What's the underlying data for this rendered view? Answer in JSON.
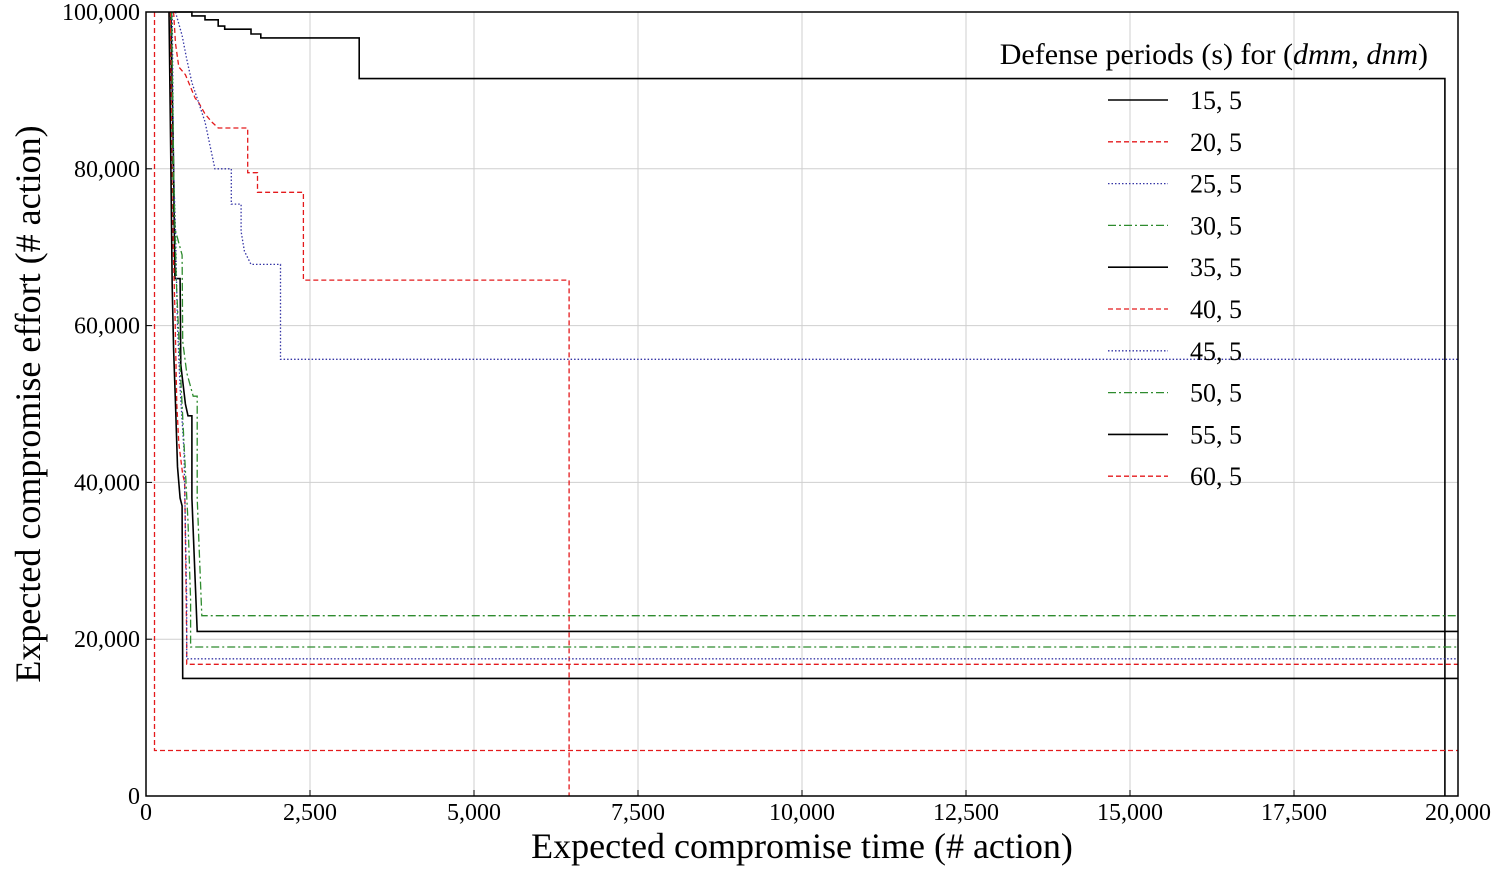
{
  "chart_data": {
    "type": "line",
    "title": "",
    "xlabel": "Expected compromise time (# action)",
    "ylabel": "Expected compromise effort (# action)",
    "xlim": [
      0,
      20000
    ],
    "ylim": [
      0,
      100000
    ],
    "xticks": [
      0,
      2500,
      5000,
      7500,
      10000,
      12500,
      15000,
      17500,
      20000
    ],
    "yticks": [
      0,
      20000,
      40000,
      60000,
      80000,
      100000
    ],
    "xtick_labels": [
      "0",
      "2,500",
      "5,000",
      "7,500",
      "10,000",
      "12,500",
      "15,000",
      "17,500",
      "20,000"
    ],
    "ytick_labels": [
      "0",
      "20,000",
      "40,000",
      "60,000",
      "80,000",
      "100,000"
    ],
    "grid": true,
    "legend_title": "Defense periods (s) for (dmm, dnm)",
    "legend_title_parts": {
      "prefix": "Defense periods (s) for ",
      "open": "(",
      "a": "dmm",
      "sep": ", ",
      "b": "dnm",
      "close": ")"
    },
    "legend_position": "top-right",
    "series": [
      {
        "name": "15, 5",
        "color": "#000000",
        "dash": "solid",
        "points": [
          [
            420,
            100000
          ],
          [
            700,
            100000
          ],
          [
            700,
            99500
          ],
          [
            900,
            99500
          ],
          [
            900,
            99000
          ],
          [
            1100,
            99000
          ],
          [
            1100,
            98200
          ],
          [
            1200,
            98200
          ],
          [
            1200,
            97800
          ],
          [
            1600,
            97800
          ],
          [
            1600,
            97200
          ],
          [
            1750,
            97200
          ],
          [
            1750,
            96700
          ],
          [
            3250,
            96700
          ],
          [
            3250,
            91500
          ],
          [
            19800,
            91500
          ],
          [
            19800,
            0
          ]
        ]
      },
      {
        "name": "20, 5",
        "color": "#e41a1c",
        "dash": "dashed",
        "points": [
          [
            420,
            100000
          ],
          [
            450,
            96000
          ],
          [
            500,
            93000
          ],
          [
            600,
            92000
          ],
          [
            700,
            90000
          ],
          [
            750,
            89000
          ],
          [
            800,
            88500
          ],
          [
            900,
            87000
          ],
          [
            1000,
            86000
          ],
          [
            1100,
            85200
          ],
          [
            1550,
            85200
          ],
          [
            1550,
            79500
          ],
          [
            1700,
            79500
          ],
          [
            1700,
            77000
          ],
          [
            2400,
            77000
          ],
          [
            2400,
            65800
          ],
          [
            6450,
            65800
          ],
          [
            6450,
            0
          ]
        ]
      },
      {
        "name": "25, 5",
        "color": "#3535a5",
        "dash": "dotted",
        "points": [
          [
            450,
            100000
          ],
          [
            550,
            97000
          ],
          [
            620,
            94000
          ],
          [
            700,
            91000
          ],
          [
            800,
            88500
          ],
          [
            900,
            86000
          ],
          [
            1000,
            82000
          ],
          [
            1050,
            80000
          ],
          [
            1300,
            80000
          ],
          [
            1300,
            75500
          ],
          [
            1450,
            75500
          ],
          [
            1450,
            72000
          ],
          [
            1500,
            69500
          ],
          [
            1600,
            67800
          ],
          [
            2050,
            67800
          ],
          [
            2050,
            55700
          ],
          [
            20000,
            55700
          ]
        ]
      },
      {
        "name": "30, 5",
        "color": "#2e8b2e",
        "dash": "dashdot",
        "points": [
          [
            390,
            100000
          ],
          [
            400,
            85000
          ],
          [
            420,
            73000
          ],
          [
            550,
            69000
          ],
          [
            560,
            58000
          ],
          [
            620,
            54000
          ],
          [
            720,
            51000
          ],
          [
            780,
            51000
          ],
          [
            780,
            38000
          ],
          [
            850,
            23000
          ],
          [
            20000,
            23000
          ]
        ]
      },
      {
        "name": "35, 5",
        "color": "#000000",
        "dash": "solid",
        "points": [
          [
            380,
            100000
          ],
          [
            420,
            80000
          ],
          [
            440,
            66000
          ],
          [
            520,
            66000
          ],
          [
            530,
            55000
          ],
          [
            600,
            50000
          ],
          [
            640,
            48500
          ],
          [
            700,
            48500
          ],
          [
            700,
            38000
          ],
          [
            780,
            21000
          ],
          [
            20000,
            21000
          ]
        ]
      },
      {
        "name": "40, 5",
        "color": "#e41a1c",
        "dash": "dashed",
        "points": [
          [
            370,
            100000
          ],
          [
            400,
            75000
          ],
          [
            440,
            62000
          ],
          [
            470,
            50000
          ],
          [
            500,
            45000
          ],
          [
            560,
            41000
          ],
          [
            590,
            40000
          ],
          [
            620,
            20000
          ],
          [
            620,
            16800
          ],
          [
            20000,
            16800
          ]
        ]
      },
      {
        "name": "45, 5",
        "color": "#3535a5",
        "dash": "dotted",
        "points": [
          [
            400,
            100000
          ],
          [
            420,
            80000
          ],
          [
            450,
            72000
          ],
          [
            480,
            60000
          ],
          [
            520,
            52000
          ],
          [
            580,
            44000
          ],
          [
            620,
            25000
          ],
          [
            620,
            17500
          ],
          [
            20000,
            17500
          ]
        ]
      },
      {
        "name": "50, 5",
        "color": "#2e8b2e",
        "dash": "dashdot",
        "points": [
          [
            390,
            100000
          ],
          [
            420,
            80000
          ],
          [
            460,
            66000
          ],
          [
            520,
            55000
          ],
          [
            580,
            45000
          ],
          [
            640,
            35000
          ],
          [
            680,
            25000
          ],
          [
            680,
            19000
          ],
          [
            20000,
            19000
          ]
        ]
      },
      {
        "name": "55, 5",
        "color": "#000000",
        "dash": "solid",
        "points": [
          [
            350,
            100000
          ],
          [
            380,
            80000
          ],
          [
            400,
            65000
          ],
          [
            420,
            57000
          ],
          [
            450,
            50000
          ],
          [
            480,
            42000
          ],
          [
            520,
            38000
          ],
          [
            550,
            37000
          ],
          [
            560,
            15000
          ],
          [
            20000,
            15000
          ]
        ]
      },
      {
        "name": "60, 5",
        "color": "#e41a1c",
        "dash": "dashed",
        "points": [
          [
            130,
            100000
          ],
          [
            130,
            5800
          ],
          [
            20000,
            5800
          ]
        ]
      }
    ]
  }
}
